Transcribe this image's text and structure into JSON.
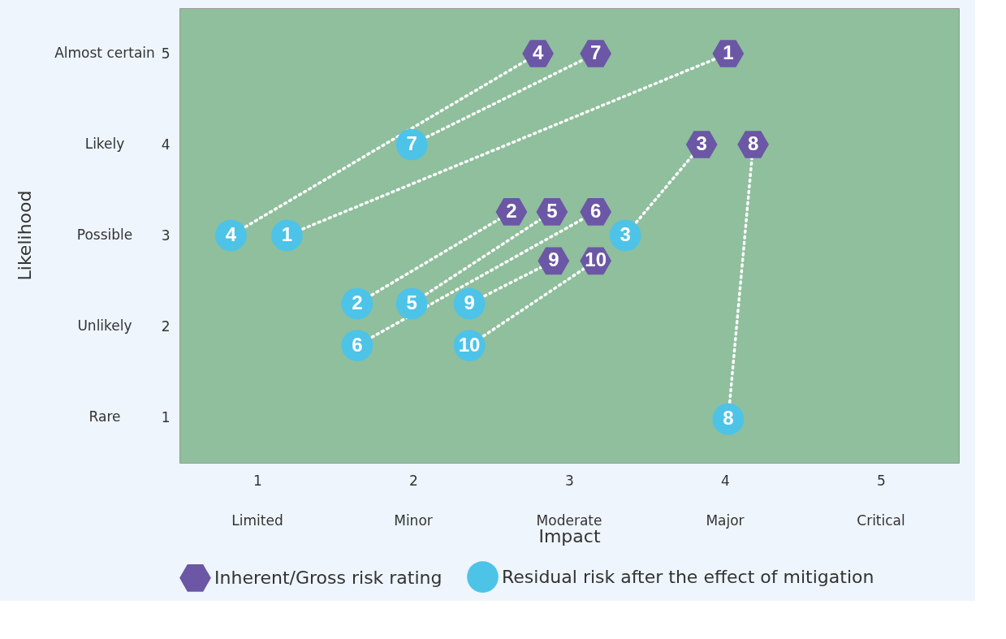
{
  "chart_data": {
    "type": "scatter",
    "xlabel": "Impact",
    "xlim": [
      0.5,
      5.5
    ],
    "xticks": [
      1,
      2,
      3,
      4,
      5
    ],
    "ylim": [
      0.5,
      5.5
    ],
    "yticks": [
      1,
      2,
      3,
      4,
      5
    ],
    "legend": "bottom",
    "grid": false,
    "series": [
      {
        "type": "line",
        "line_style": "dotted",
        "color": "#ffffff",
        "x": [
          4.02,
          1.19
        ],
        "values": [
          5,
          3
        ]
      },
      {
        "type": "line",
        "line_style": "dotted",
        "color": "#ffffff",
        "x": [
          2.63,
          1.64
        ],
        "values": [
          3.26,
          2.25
        ]
      },
      {
        "type": "line",
        "line_style": "dotted",
        "color": "#ffffff",
        "x": [
          3.85,
          3.36
        ],
        "values": [
          4,
          3
        ]
      },
      {
        "type": "line",
        "line_style": "dotted",
        "color": "#ffffff",
        "x": [
          2.8,
          0.83
        ],
        "values": [
          5,
          3
        ]
      },
      {
        "type": "line",
        "line_style": "dotted",
        "color": "#ffffff",
        "x": [
          2.89,
          1.99
        ],
        "values": [
          3.26,
          2.25
        ]
      },
      {
        "type": "line",
        "line_style": "dotted",
        "color": "#ffffff",
        "x": [
          3.17,
          1.64
        ],
        "values": [
          3.26,
          1.79
        ]
      },
      {
        "type": "line",
        "line_style": "dotted",
        "color": "#ffffff",
        "x": [
          3.17,
          1.99
        ],
        "values": [
          5,
          4
        ]
      },
      {
        "type": "line",
        "line_style": "dotted",
        "color": "#ffffff",
        "x": [
          4.18,
          4.02
        ],
        "values": [
          4,
          0.98
        ]
      },
      {
        "type": "line",
        "line_style": "dotted",
        "color": "#ffffff",
        "x": [
          2.9,
          2.36
        ],
        "values": [
          2.72,
          2.25
        ]
      },
      {
        "type": "line",
        "line_style": "dotted",
        "color": "#ffffff",
        "x": [
          3.17,
          2.36
        ],
        "values": [
          2.72,
          1.79
        ]
      },
      {
        "name": "Inherent/Gross risk rating",
        "color": "#6b57a5",
        "x": [
          4.02,
          2.63,
          3.85,
          2.8,
          2.89,
          3.17,
          3.17,
          4.18,
          2.9,
          3.17
        ],
        "values": [
          5,
          3.26,
          4,
          5,
          3.26,
          3.26,
          5,
          4,
          2.72,
          2.72
        ]
      },
      {
        "name": "Residual risk after the effect of mitigation",
        "marker": "circle",
        "color": "#4dc3e8",
        "x": [
          1.19,
          1.64,
          3.36,
          0.83,
          1.99,
          1.64,
          1.99,
          4.02,
          2.36,
          2.36
        ],
        "values": [
          3,
          2.25,
          3,
          3,
          2.25,
          1.79,
          4,
          0.98,
          2.25,
          1.79
        ]
      }
    ],
    "annotations": [
      "Limited",
      "Minor",
      "Moderate",
      "Major",
      "Critical",
      "Rare",
      "Unlikely",
      "Possible",
      "Likely",
      "Almost certain",
      "Likelihood",
      {
        "text": "1",
        "x": 4.02,
        "y": 5
      },
      {
        "text": "2",
        "x": 2.63,
        "y": 3.26
      },
      {
        "text": "3",
        "x": 3.85,
        "y": 4
      },
      {
        "text": "4",
        "x": 2.8,
        "y": 5
      },
      {
        "text": "5",
        "x": 2.89,
        "y": 3.26
      },
      {
        "text": "6",
        "x": 3.17,
        "y": 3.26
      },
      {
        "text": "7",
        "x": 3.17,
        "y": 5
      },
      {
        "text": "8",
        "x": 4.18,
        "y": 4
      },
      {
        "text": "9",
        "x": 2.9,
        "y": 2.72
      },
      {
        "text": "10",
        "x": 3.17,
        "y": 2.72
      },
      {
        "text": "1",
        "x": 1.19,
        "y": 3
      },
      {
        "text": "2",
        "x": 1.64,
        "y": 2.25
      },
      {
        "text": "3",
        "x": 3.36,
        "y": 3
      },
      {
        "text": "4",
        "x": 0.83,
        "y": 3
      },
      {
        "text": "5",
        "x": 1.99,
        "y": 2.25
      },
      {
        "text": "6",
        "x": 1.64,
        "y": 1.79
      },
      {
        "text": "7",
        "x": 1.99,
        "y": 4
      },
      {
        "text": "8",
        "x": 4.02,
        "y": 0.98
      },
      {
        "text": "9",
        "x": 2.36,
        "y": 2.25
      },
      {
        "text": "10",
        "x": 2.36,
        "y": 1.79
      }
    ]
  }
}
